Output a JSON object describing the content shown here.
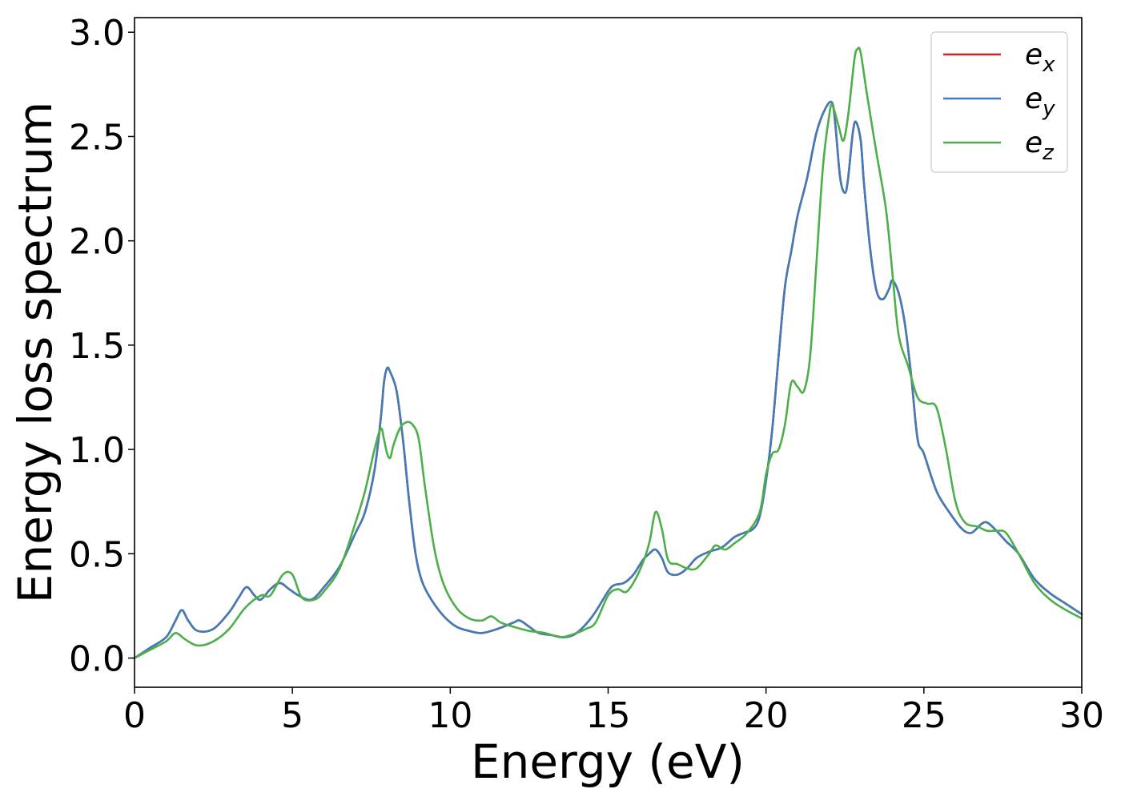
{
  "chart_data": {
    "type": "line",
    "title": "",
    "xlabel": "Energy (eV)",
    "ylabel": "Energy loss spectrum",
    "xlim": [
      0,
      30
    ],
    "ylim": [
      -0.14,
      3.07
    ],
    "xticks": [
      0,
      5,
      10,
      15,
      20,
      25,
      30
    ],
    "xtick_labels": [
      "0",
      "5",
      "10",
      "15",
      "20",
      "25",
      "30"
    ],
    "yticks": [
      0.0,
      0.5,
      1.0,
      1.5,
      2.0,
      2.5,
      3.0
    ],
    "ytick_labels": [
      "0.0",
      "0.5",
      "1.0",
      "1.5",
      "2.0",
      "2.5",
      "3.0"
    ],
    "grid": false,
    "legend": "top-right",
    "series": [
      {
        "name": "e_x",
        "label_main": "e",
        "label_sub": "x",
        "color": "#e41a1c",
        "x": [
          0,
          0.5,
          1.0,
          1.3,
          1.5,
          1.7,
          2.0,
          2.5,
          3.0,
          3.3,
          3.55,
          3.8,
          4.0,
          4.3,
          4.6,
          4.9,
          5.2,
          5.6,
          6.0,
          6.5,
          7.0,
          7.3,
          7.6,
          7.8,
          7.9,
          8.0,
          8.1,
          8.3,
          8.5,
          8.7,
          8.9,
          9.1,
          9.4,
          9.8,
          10.2,
          10.6,
          11.0,
          11.5,
          12.0,
          12.2,
          12.5,
          12.8,
          13.2,
          13.6,
          14.0,
          14.5,
          15.0,
          15.2,
          15.5,
          15.8,
          16.1,
          16.3,
          16.5,
          16.7,
          16.9,
          17.2,
          17.5,
          17.8,
          18.2,
          18.6,
          19.0,
          19.3,
          19.6,
          19.8,
          20.0,
          20.2,
          20.4,
          20.6,
          20.8,
          21.0,
          21.3,
          21.6,
          21.9,
          22.1,
          22.2,
          22.35,
          22.5,
          22.6,
          22.75,
          22.85,
          23.0,
          23.1,
          23.3,
          23.5,
          23.7,
          23.9,
          24.0,
          24.2,
          24.4,
          24.6,
          24.8,
          25.0,
          25.4,
          25.8,
          26.2,
          26.5,
          26.8,
          27.0,
          27.3,
          27.6,
          28.0,
          28.5,
          29.0,
          29.5,
          30.0
        ],
        "y": [
          0.0,
          0.05,
          0.1,
          0.18,
          0.23,
          0.18,
          0.13,
          0.14,
          0.22,
          0.29,
          0.34,
          0.3,
          0.28,
          0.33,
          0.36,
          0.33,
          0.3,
          0.28,
          0.34,
          0.44,
          0.6,
          0.7,
          0.9,
          1.15,
          1.32,
          1.39,
          1.37,
          1.28,
          1.05,
          0.75,
          0.5,
          0.37,
          0.28,
          0.2,
          0.15,
          0.13,
          0.12,
          0.14,
          0.17,
          0.18,
          0.15,
          0.12,
          0.11,
          0.1,
          0.12,
          0.2,
          0.32,
          0.35,
          0.36,
          0.4,
          0.47,
          0.5,
          0.52,
          0.48,
          0.41,
          0.4,
          0.43,
          0.48,
          0.51,
          0.53,
          0.58,
          0.6,
          0.62,
          0.68,
          0.85,
          1.1,
          1.45,
          1.78,
          1.95,
          2.12,
          2.3,
          2.52,
          2.64,
          2.66,
          2.55,
          2.3,
          2.23,
          2.3,
          2.52,
          2.57,
          2.48,
          2.28,
          1.96,
          1.76,
          1.72,
          1.77,
          1.81,
          1.75,
          1.6,
          1.35,
          1.05,
          0.98,
          0.8,
          0.7,
          0.62,
          0.6,
          0.64,
          0.65,
          0.61,
          0.56,
          0.5,
          0.38,
          0.31,
          0.26,
          0.21
        ]
      },
      {
        "name": "e_y",
        "label_main": "e",
        "label_sub": "y",
        "color": "#3f7cb8",
        "x": [
          0,
          0.5,
          1.0,
          1.3,
          1.5,
          1.7,
          2.0,
          2.5,
          3.0,
          3.3,
          3.55,
          3.8,
          4.0,
          4.3,
          4.6,
          4.9,
          5.2,
          5.6,
          6.0,
          6.5,
          7.0,
          7.3,
          7.6,
          7.8,
          7.9,
          8.0,
          8.1,
          8.3,
          8.5,
          8.7,
          8.9,
          9.1,
          9.4,
          9.8,
          10.2,
          10.6,
          11.0,
          11.5,
          12.0,
          12.2,
          12.5,
          12.8,
          13.2,
          13.6,
          14.0,
          14.5,
          15.0,
          15.2,
          15.5,
          15.8,
          16.1,
          16.3,
          16.5,
          16.7,
          16.9,
          17.2,
          17.5,
          17.8,
          18.2,
          18.6,
          19.0,
          19.3,
          19.6,
          19.8,
          20.0,
          20.2,
          20.4,
          20.6,
          20.8,
          21.0,
          21.3,
          21.6,
          21.9,
          22.1,
          22.2,
          22.35,
          22.5,
          22.6,
          22.75,
          22.85,
          23.0,
          23.1,
          23.3,
          23.5,
          23.7,
          23.9,
          24.0,
          24.2,
          24.4,
          24.6,
          24.8,
          25.0,
          25.4,
          25.8,
          26.2,
          26.5,
          26.8,
          27.0,
          27.3,
          27.6,
          28.0,
          28.5,
          29.0,
          29.5,
          30.0
        ],
        "y": [
          0.0,
          0.05,
          0.1,
          0.18,
          0.23,
          0.18,
          0.13,
          0.14,
          0.22,
          0.29,
          0.34,
          0.3,
          0.28,
          0.33,
          0.36,
          0.33,
          0.3,
          0.28,
          0.34,
          0.44,
          0.6,
          0.7,
          0.9,
          1.15,
          1.32,
          1.39,
          1.37,
          1.28,
          1.05,
          0.75,
          0.5,
          0.37,
          0.28,
          0.2,
          0.15,
          0.13,
          0.12,
          0.14,
          0.17,
          0.18,
          0.15,
          0.12,
          0.11,
          0.1,
          0.12,
          0.2,
          0.32,
          0.35,
          0.36,
          0.4,
          0.47,
          0.5,
          0.52,
          0.48,
          0.41,
          0.4,
          0.43,
          0.48,
          0.51,
          0.53,
          0.58,
          0.6,
          0.62,
          0.68,
          0.85,
          1.1,
          1.45,
          1.78,
          1.95,
          2.12,
          2.3,
          2.52,
          2.64,
          2.66,
          2.55,
          2.3,
          2.23,
          2.3,
          2.52,
          2.57,
          2.48,
          2.28,
          1.96,
          1.76,
          1.72,
          1.77,
          1.81,
          1.75,
          1.6,
          1.35,
          1.05,
          0.98,
          0.8,
          0.7,
          0.62,
          0.6,
          0.64,
          0.65,
          0.61,
          0.56,
          0.5,
          0.38,
          0.31,
          0.26,
          0.21
        ]
      },
      {
        "name": "e_z",
        "label_main": "e",
        "label_sub": "z",
        "color": "#4daf4a",
        "x": [
          0,
          0.5,
          1.0,
          1.3,
          1.6,
          2.0,
          2.5,
          3.0,
          3.5,
          4.0,
          4.3,
          4.7,
          5.0,
          5.3,
          5.7,
          6.0,
          6.5,
          7.0,
          7.3,
          7.6,
          7.8,
          7.9,
          8.0,
          8.1,
          8.2,
          8.4,
          8.6,
          8.8,
          9.0,
          9.2,
          9.5,
          9.8,
          10.2,
          10.6,
          11.0,
          11.3,
          11.6,
          12.0,
          12.5,
          13.0,
          13.5,
          14.0,
          14.3,
          14.6,
          15.0,
          15.3,
          15.6,
          16.0,
          16.3,
          16.5,
          16.7,
          16.9,
          17.2,
          17.5,
          17.8,
          18.2,
          18.4,
          18.7,
          19.0,
          19.4,
          19.8,
          20.0,
          20.2,
          20.4,
          20.6,
          20.8,
          21.0,
          21.2,
          21.4,
          21.6,
          21.8,
          22.0,
          22.1,
          22.3,
          22.45,
          22.6,
          22.8,
          22.9,
          23.0,
          23.2,
          23.5,
          23.8,
          24.0,
          24.2,
          24.5,
          24.8,
          25.1,
          25.4,
          25.7,
          26.0,
          26.3,
          26.7,
          27.0,
          27.3,
          27.6,
          28.0,
          28.5,
          29.0,
          29.5,
          30.0
        ],
        "y": [
          0.0,
          0.04,
          0.08,
          0.12,
          0.09,
          0.06,
          0.08,
          0.14,
          0.24,
          0.3,
          0.3,
          0.4,
          0.4,
          0.29,
          0.28,
          0.32,
          0.43,
          0.65,
          0.8,
          1.0,
          1.1,
          1.05,
          0.98,
          0.96,
          1.02,
          1.1,
          1.13,
          1.12,
          1.05,
          0.82,
          0.52,
          0.35,
          0.24,
          0.19,
          0.18,
          0.2,
          0.17,
          0.15,
          0.13,
          0.12,
          0.1,
          0.12,
          0.14,
          0.17,
          0.3,
          0.33,
          0.32,
          0.42,
          0.55,
          0.7,
          0.62,
          0.47,
          0.45,
          0.43,
          0.43,
          0.5,
          0.54,
          0.52,
          0.55,
          0.6,
          0.7,
          0.88,
          0.98,
          1.0,
          1.12,
          1.32,
          1.3,
          1.28,
          1.45,
          1.9,
          2.35,
          2.6,
          2.65,
          2.55,
          2.48,
          2.6,
          2.87,
          2.92,
          2.9,
          2.7,
          2.42,
          2.15,
          1.85,
          1.55,
          1.4,
          1.25,
          1.22,
          1.2,
          1.0,
          0.75,
          0.65,
          0.63,
          0.61,
          0.61,
          0.6,
          0.5,
          0.36,
          0.28,
          0.23,
          0.19
        ]
      }
    ]
  }
}
